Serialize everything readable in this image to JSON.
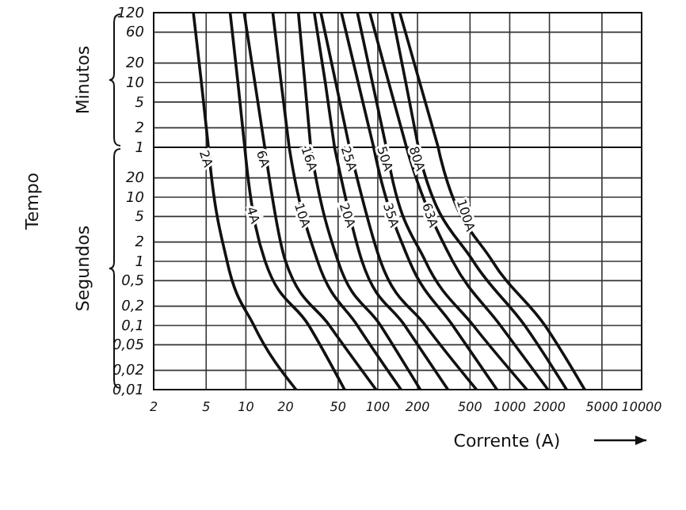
{
  "chart_data": [
    {
      "type": "line",
      "ylabel": "Minutos",
      "annotations": [
        "Tempo"
      ],
      "log": "xy",
      "grid": true,
      "legend": false,
      "marker": "none",
      "line_style": "solid",
      "tick_labels": "y",
      "xlim": [
        2,
        10000
      ],
      "xticks": [
        2,
        5,
        10,
        20,
        50,
        100,
        200,
        500,
        1000,
        2000,
        5000,
        10000
      ],
      "ylim": [
        1,
        120
      ],
      "yticks": [
        120,
        60,
        20,
        10,
        5,
        2,
        1
      ],
      "series": [
        {
          "color": "#111111",
          "x": [
            4,
            4.6,
            5.2
          ],
          "values": [
            120,
            10,
            1
          ]
        },
        {
          "color": "#111111",
          "x": [
            7.6,
            8.7,
            9.8
          ],
          "values": [
            120,
            10,
            1
          ]
        },
        {
          "color": "#111111",
          "x": [
            9.7,
            11.7,
            13.9
          ],
          "values": [
            120,
            10,
            1
          ]
        },
        {
          "color": "#111111",
          "x": [
            16,
            18.5,
            21.3
          ],
          "values": [
            120,
            10,
            1
          ]
        },
        {
          "color": "#111111",
          "x": [
            25,
            28,
            31
          ],
          "values": [
            120,
            10,
            1
          ]
        },
        {
          "color": "#111111",
          "x": [
            33,
            40,
            47
          ],
          "values": [
            120,
            10,
            1
          ]
        },
        {
          "color": "#111111",
          "x": [
            37,
            48,
            61
          ],
          "values": [
            120,
            10,
            1
          ]
        },
        {
          "color": "#111111",
          "x": [
            53,
            71,
            93
          ],
          "values": [
            120,
            10,
            1
          ]
        },
        {
          "color": "#111111",
          "x": [
            70,
            91,
            116
          ],
          "values": [
            120,
            10,
            1
          ]
        },
        {
          "color": "#111111",
          "x": [
            87,
            121,
            165
          ],
          "values": [
            120,
            10,
            1
          ]
        },
        {
          "color": "#111111",
          "x": [
            128,
            163,
            203
          ],
          "values": [
            120,
            10,
            1
          ]
        },
        {
          "color": "#111111",
          "x": [
            147,
            208,
            287
          ],
          "values": [
            120,
            10,
            1
          ]
        }
      ]
    },
    {
      "type": "line",
      "xlabel": "Corrente (A)",
      "ylabel": "Segundos",
      "log": "xy",
      "grid": true,
      "legend": false,
      "marker": "none",
      "line_style": "solid",
      "xlim": [
        2,
        10000
      ],
      "xticks": [
        2,
        5,
        10,
        20,
        50,
        100,
        200,
        500,
        1000,
        2000,
        5000,
        10000
      ],
      "ylim": [
        0.01,
        60
      ],
      "yticks": [
        20,
        10,
        5,
        2,
        1,
        {
          "value": 0.5,
          "label": "0,5"
        },
        {
          "value": 0.2,
          "label": "0,2"
        },
        {
          "value": 0.1,
          "label": "0,1"
        },
        {
          "value": 0.05,
          "label": "0,05"
        },
        {
          "value": 0.02,
          "label": "0,02"
        },
        {
          "value": 0.01,
          "label": "0,01"
        }
      ],
      "series": [
        {
          "name": "2A",
          "color": "#111111",
          "x": [
            5.2,
            5.3,
            7.2,
            11.5,
            24
          ],
          "values": [
            60,
            40,
            1,
            0.1,
            0.01
          ]
        },
        {
          "name": "4A",
          "color": "#111111",
          "x": [
            9.8,
            10,
            14,
            30,
            56
          ],
          "values": [
            60,
            40,
            1,
            0.1,
            0.01
          ]
        },
        {
          "name": "6A",
          "color": "#111111",
          "x": [
            13.9,
            14.3,
            20,
            43,
            97
          ],
          "values": [
            60,
            40,
            1,
            0.1,
            0.01
          ]
        },
        {
          "name": "10A",
          "color": "#111111",
          "x": [
            21.3,
            22,
            35,
            70,
            150
          ],
          "values": [
            60,
            40,
            1,
            0.1,
            0.01
          ]
        },
        {
          "name": "16A",
          "color": "#111111",
          "x": [
            31,
            32,
            50,
            105,
            210
          ],
          "values": [
            60,
            40,
            1,
            0.1,
            0.01
          ]
        },
        {
          "name": "20A",
          "color": "#111111",
          "x": [
            47,
            49,
            76,
            160,
            340
          ],
          "values": [
            60,
            40,
            1,
            0.1,
            0.01
          ]
        },
        {
          "name": "25A",
          "color": "#111111",
          "x": [
            61,
            64,
            105,
            230,
            560
          ],
          "values": [
            60,
            40,
            1,
            0.1,
            0.01
          ]
        },
        {
          "name": "35A",
          "color": "#111111",
          "x": [
            93,
            97,
            174,
            370,
            800
          ],
          "values": [
            60,
            40,
            1,
            0.1,
            0.01
          ]
        },
        {
          "name": "50A",
          "color": "#111111",
          "x": [
            116,
            120,
            230,
            530,
            1350
          ],
          "values": [
            60,
            40,
            1,
            0.1,
            0.01
          ]
        },
        {
          "name": "63A",
          "color": "#111111",
          "x": [
            165,
            175,
            370,
            850,
            1950
          ],
          "values": [
            60,
            40,
            1,
            0.1,
            0.01
          ]
        },
        {
          "name": "80A",
          "color": "#111111",
          "x": [
            203,
            210,
            530,
            1300,
            2700
          ],
          "values": [
            60,
            40,
            1,
            0.1,
            0.01
          ]
        },
        {
          "name": "100A",
          "color": "#111111",
          "x": [
            287,
            300,
            740,
            1850,
            3700
          ],
          "values": [
            60,
            40,
            1,
            0.1,
            0.01
          ]
        }
      ]
    }
  ]
}
